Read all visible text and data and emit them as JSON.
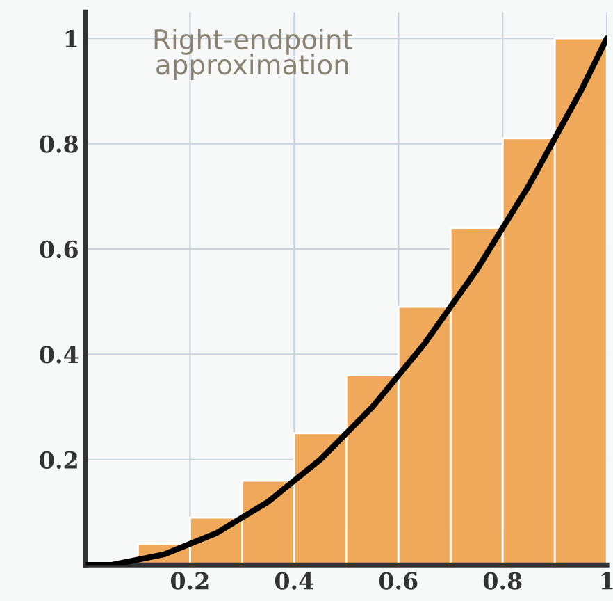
{
  "chart_data": {
    "type": "histogram",
    "bins": [
      0,
      0.1,
      0.2,
      0.3,
      0.4,
      0.5,
      0.6,
      0.7,
      0.8,
      0.9,
      1.0
    ],
    "values": [
      null,
      0.04,
      0.09,
      0.16,
      0.25,
      0.36,
      0.49,
      0.64,
      0.81,
      1.0
    ],
    "color": "#f0a85a",
    "series": [
      {
        "type": "line",
        "color": "#000000",
        "x": [
          0,
          0.05,
          0.1,
          0.15,
          0.2,
          0.25,
          0.3,
          0.35,
          0.4,
          0.45,
          0.5,
          0.55,
          0.6,
          0.65,
          0.7,
          0.75,
          0.8,
          0.85,
          0.9,
          0.95,
          1.0
        ],
        "values": [
          0,
          0,
          0.01,
          0.02,
          0.04,
          0.06,
          0.09,
          0.12,
          0.16,
          0.2,
          0.25,
          0.3,
          0.36,
          0.42,
          0.49,
          0.56,
          0.64,
          0.72,
          0.81,
          0.9,
          1.0
        ]
      }
    ],
    "annotations": [
      "Right-endpoint\napproximation"
    ],
    "xlim": [
      0,
      1.0
    ],
    "ylim": [
      0,
      1.05
    ],
    "xticks": [
      0.2,
      0.4,
      0.6,
      0.8,
      1
    ],
    "yticks": [
      0.2,
      0.4,
      0.6,
      0.8,
      1
    ],
    "grid": true
  }
}
